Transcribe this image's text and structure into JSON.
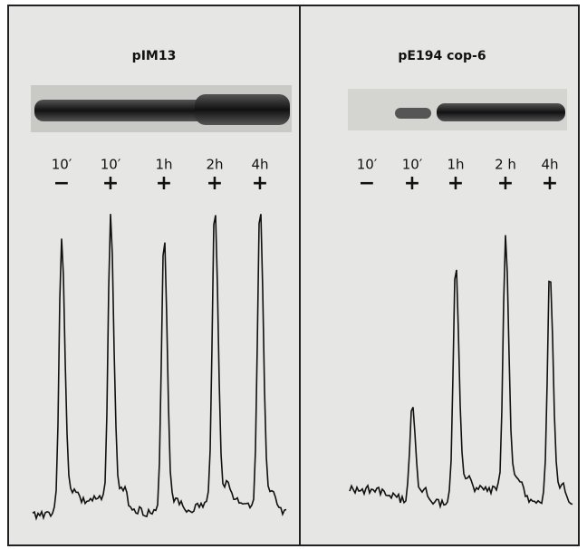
{
  "panels": [
    {
      "title": "pIM13",
      "lanes": [
        {
          "time": "10′",
          "sign": "−"
        },
        {
          "time": "10′",
          "sign": "+"
        },
        {
          "time": "1h",
          "sign": "+"
        },
        {
          "time": "2h",
          "sign": "+"
        },
        {
          "time": "4h",
          "sign": "+"
        }
      ]
    },
    {
      "title": "pE194 cop-6",
      "lanes": [
        {
          "time": "10′",
          "sign": "−"
        },
        {
          "time": "10′",
          "sign": "+"
        },
        {
          "time": "1h",
          "sign": "+"
        },
        {
          "time": "2 h",
          "sign": "+"
        },
        {
          "time": "4h",
          "sign": "+"
        }
      ]
    }
  ]
}
